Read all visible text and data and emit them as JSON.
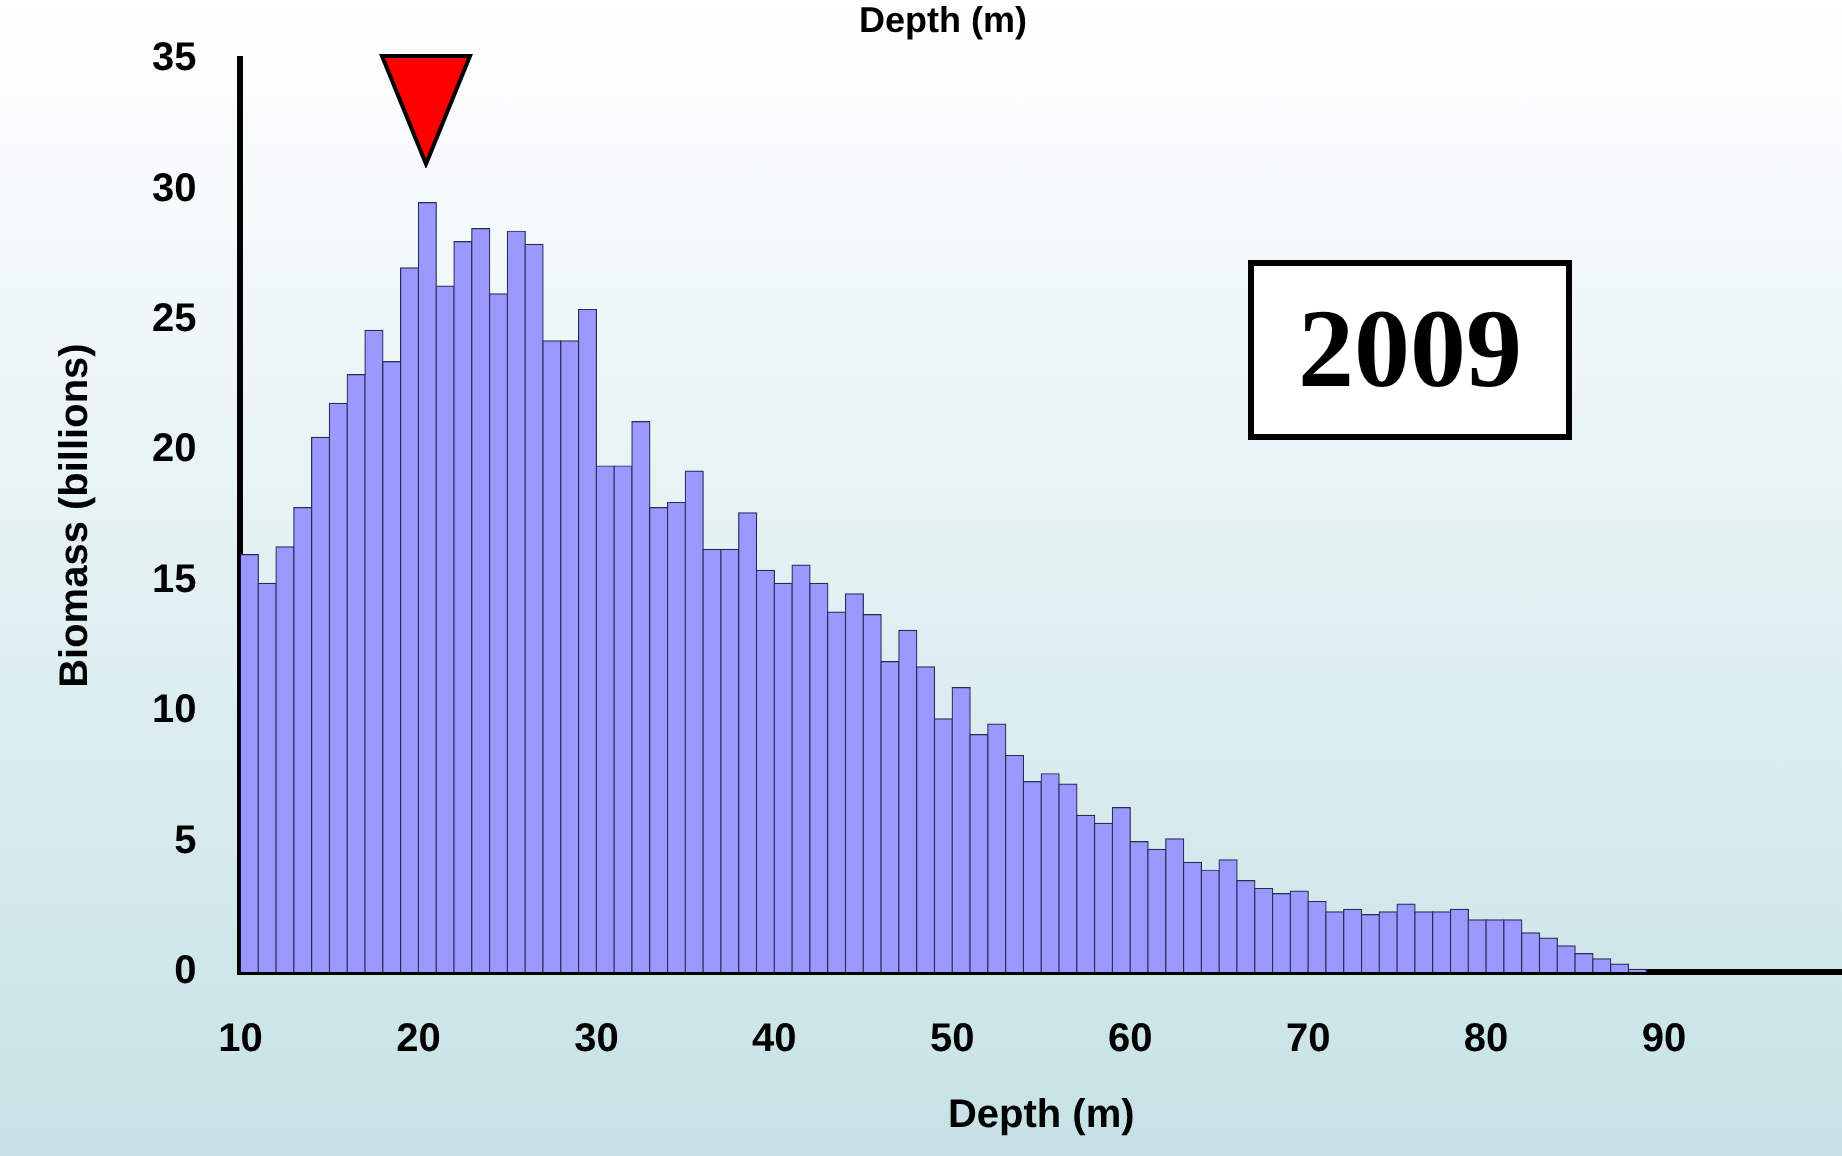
{
  "chart_data": {
    "type": "histogram",
    "title": "Depth (m)",
    "xlabel": "Depth (m)",
    "ylabel": "Biomass (billions)",
    "annotations": [
      "2009"
    ],
    "bins": [
      10,
      11,
      12,
      13,
      14,
      15,
      16,
      17,
      18,
      19,
      20,
      21,
      22,
      23,
      24,
      25,
      26,
      27,
      28,
      29,
      30,
      31,
      32,
      33,
      34,
      35,
      36,
      37,
      38,
      39,
      40,
      41,
      42,
      43,
      44,
      45,
      46,
      47,
      48,
      49,
      50,
      51,
      52,
      53,
      54,
      55,
      56,
      57,
      58,
      59,
      60,
      61,
      62,
      63,
      64,
      65,
      66,
      67,
      68,
      69,
      70,
      71,
      72,
      73,
      74,
      75,
      76,
      77,
      78,
      79,
      80,
      81,
      82,
      83,
      84,
      85,
      86,
      87,
      88,
      89,
      90,
      91,
      92,
      93,
      94,
      95,
      96,
      97,
      98,
      99,
      100
    ],
    "values": [
      16.0,
      14.9,
      16.3,
      17.8,
      20.5,
      21.8,
      22.9,
      24.6,
      23.4,
      27.0,
      29.5,
      26.3,
      28.0,
      28.5,
      26.0,
      28.4,
      27.9,
      24.2,
      24.2,
      25.4,
      19.4,
      19.4,
      21.1,
      17.8,
      18.0,
      19.2,
      16.2,
      16.2,
      17.6,
      15.4,
      14.9,
      15.6,
      14.9,
      13.8,
      14.5,
      13.7,
      11.9,
      13.1,
      11.7,
      9.7,
      10.9,
      9.1,
      9.5,
      8.3,
      7.3,
      7.6,
      7.2,
      6.0,
      5.7,
      6.3,
      5.0,
      4.7,
      5.1,
      4.2,
      3.9,
      4.3,
      3.5,
      3.2,
      3.0,
      3.1,
      2.7,
      2.3,
      2.4,
      2.2,
      2.3,
      2.6,
      2.3,
      2.3,
      2.4,
      2.0,
      2.0,
      2.0,
      1.5,
      1.3,
      1.0,
      0.7,
      0.5,
      0.3,
      0.1,
      0,
      0,
      0,
      0,
      0,
      0,
      0,
      0,
      0,
      0,
      0
    ],
    "color": "#9999ff",
    "xlim": [
      10,
      100
    ],
    "xticks": [
      10,
      20,
      30,
      40,
      50,
      60,
      70,
      80,
      90
    ],
    "ylim": [
      0,
      35
    ],
    "yticks": [
      0,
      5,
      10,
      15,
      20,
      25,
      30,
      35
    ],
    "grid": false,
    "legend": false
  }
}
